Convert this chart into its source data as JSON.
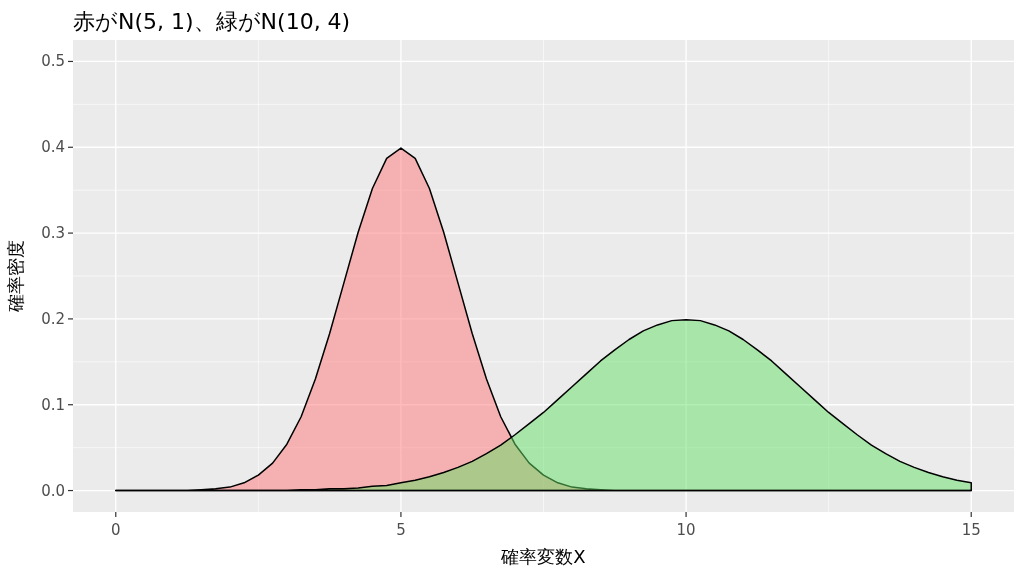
{
  "chart_data": {
    "type": "area",
    "title": "赤がN(5, 1)、緑がN(10, 4)",
    "xlabel": "確率変数X",
    "ylabel": "確率密度",
    "x": [
      0,
      0.25,
      0.5,
      0.75,
      1,
      1.25,
      1.5,
      1.75,
      2,
      2.25,
      2.5,
      2.75,
      3,
      3.25,
      3.5,
      3.75,
      4,
      4.25,
      4.5,
      4.75,
      5,
      5.25,
      5.5,
      5.75,
      6,
      6.25,
      6.5,
      6.75,
      7,
      7.25,
      7.5,
      7.75,
      8,
      8.25,
      8.5,
      8.75,
      9,
      9.25,
      9.5,
      9.75,
      10,
      10.25,
      10.5,
      10.75,
      11,
      11.25,
      11.5,
      11.75,
      12,
      12.25,
      12.5,
      12.75,
      13,
      13.25,
      13.5,
      13.75,
      14,
      14.25,
      14.5,
      14.75,
      15
    ],
    "series": [
      {
        "color": "#ff7777",
        "values": [
          0,
          0,
          0,
          0,
          0,
          0,
          0.001,
          0.002,
          0.004,
          0.009,
          0.018,
          0.032,
          0.054,
          0.086,
          0.13,
          0.183,
          0.242,
          0.301,
          0.352,
          0.387,
          0.399,
          0.387,
          0.352,
          0.301,
          0.242,
          0.183,
          0.13,
          0.086,
          0.054,
          0.032,
          0.018,
          0.009,
          0.004,
          0.002,
          0.001,
          0,
          0,
          0,
          0,
          0,
          0,
          0,
          0,
          0,
          0,
          0,
          0,
          0,
          0,
          0,
          0,
          0,
          0,
          0,
          0,
          0,
          0,
          0,
          0,
          0,
          0
        ]
      },
      {
        "color": "#66e066",
        "values": [
          0,
          0,
          0,
          0,
          0,
          0,
          0,
          0,
          0,
          0,
          0,
          0,
          0,
          0.001,
          0.001,
          0.002,
          0.002,
          0.003,
          0.005,
          0.006,
          0.009,
          0.012,
          0.016,
          0.021,
          0.027,
          0.034,
          0.043,
          0.053,
          0.065,
          0.078,
          0.091,
          0.106,
          0.121,
          0.136,
          0.151,
          0.164,
          0.176,
          0.186,
          0.193,
          0.198,
          0.199,
          0.198,
          0.193,
          0.186,
          0.176,
          0.164,
          0.151,
          0.136,
          0.121,
          0.106,
          0.091,
          0.078,
          0.065,
          0.053,
          0.043,
          0.034,
          0.027,
          0.021,
          0.016,
          0.012,
          0.009
        ]
      }
    ],
    "xlim": [
      -0.75,
      15.75
    ],
    "ylim": [
      -0.025,
      0.525
    ],
    "xticks": [
      0,
      5,
      10,
      15
    ],
    "yticks": [
      {
        "value": 0,
        "label": "0.0"
      },
      {
        "value": 0.1,
        "label": "0.1"
      },
      {
        "value": 0.2,
        "label": "0.2"
      },
      {
        "value": 0.3,
        "label": "0.3"
      },
      {
        "value": 0.4,
        "label": "0.4"
      },
      {
        "value": 0.5,
        "label": "0.5"
      }
    ],
    "grid": true
  }
}
